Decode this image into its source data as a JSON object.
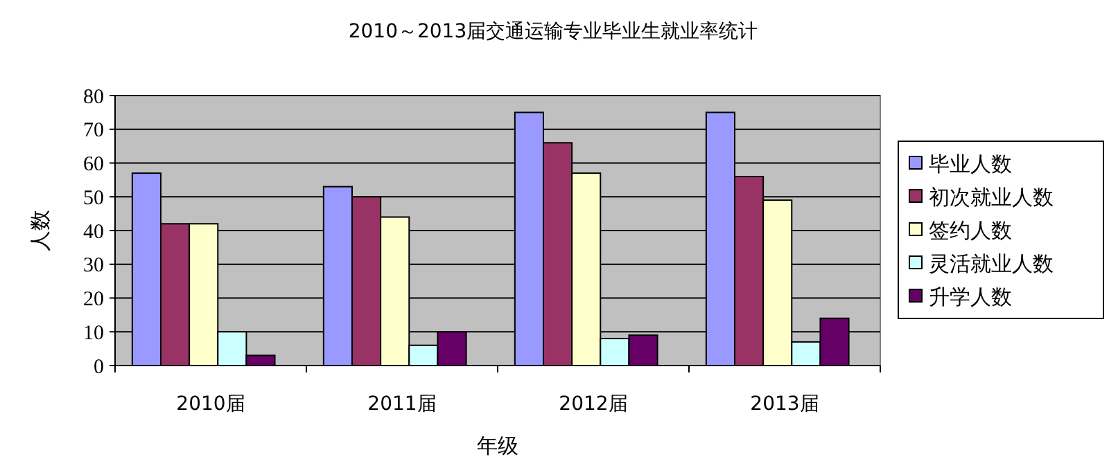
{
  "chart_data": {
    "type": "bar",
    "title": "2010～2013届交通运输专业毕业生就业率统计",
    "xlabel": "年级",
    "ylabel": "人数",
    "categories": [
      "2010届",
      "2011届",
      "2012届",
      "2013届"
    ],
    "series": [
      {
        "name": "毕业人数",
        "color": "#9999ff",
        "values": [
          57,
          53,
          75,
          75
        ]
      },
      {
        "name": "初次就业人数",
        "color": "#993366",
        "values": [
          42,
          50,
          66,
          56
        ]
      },
      {
        "name": "签约人数",
        "color": "#ffffcc",
        "values": [
          42,
          44,
          57,
          49
        ]
      },
      {
        "name": "灵活就业人数",
        "color": "#ccffff",
        "values": [
          10,
          6,
          8,
          7
        ]
      },
      {
        "name": "升学人数",
        "color": "#660066",
        "values": [
          3,
          10,
          9,
          14
        ]
      }
    ],
    "ylim": [
      0,
      80
    ],
    "yticks": [
      0,
      10,
      20,
      30,
      40,
      50,
      60,
      70,
      80
    ],
    "grid": "y",
    "legend": "right"
  }
}
